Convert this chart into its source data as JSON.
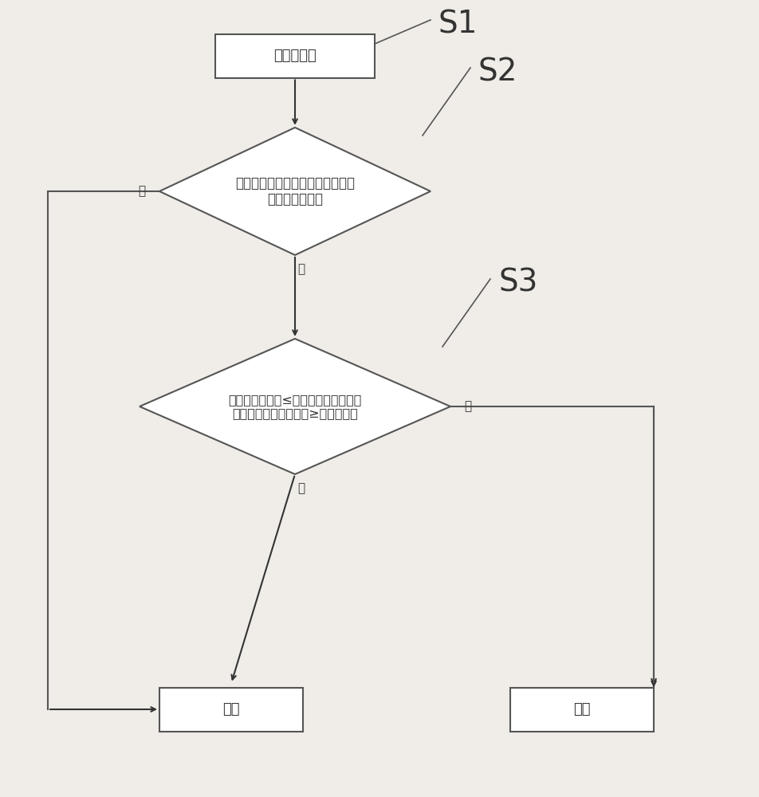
{
  "bg_color": "#f0ede8",
  "box_color": "#ffffff",
  "box_edge_color": "#555555",
  "arrow_color": "#333333",
  "text_color": "#333333",
  "line_color": "#555555",
  "s1_label": "S1",
  "s2_label": "S2",
  "s3_label": "S3",
  "box1_text": "感测电流值",
  "diamond1_text": "所有相邻或相近的输入端电流全部\n小于第一预定值",
  "diamond2_text": "某输入端电流值≤第二预定值同时相邻\n或相近的输入端电流值≥第一预定值",
  "normal_text": "正常",
  "abnormal_text": "异常",
  "yes_label": "是",
  "no_label": "否",
  "font_size_main": 13,
  "font_size_label": 11,
  "font_size_step": 28
}
